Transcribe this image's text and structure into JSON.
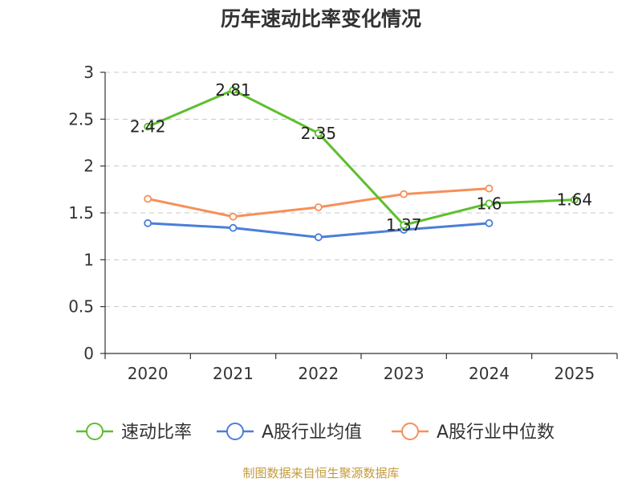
{
  "chart_data": {
    "type": "line",
    "title": "历年速动比率变化情况",
    "categories": [
      "2020",
      "2021",
      "2022",
      "2023",
      "2024",
      "2025"
    ],
    "ylim": [
      0,
      3
    ],
    "yticks": [
      "0",
      "0.5",
      "1",
      "1.5",
      "2",
      "2.5",
      "3"
    ],
    "grid": true,
    "legend_position": "bottom",
    "series": [
      {
        "name": "速动比率",
        "color": "#5dbf2e",
        "values": [
          2.42,
          2.81,
          2.35,
          1.37,
          1.6,
          1.64
        ],
        "labels": [
          "2.42",
          "2.81",
          "2.35",
          "1.37",
          "1.6",
          "1.64"
        ]
      },
      {
        "name": "A股行业均值",
        "color": "#4a7fd8",
        "values": [
          1.39,
          1.34,
          1.24,
          1.32,
          1.39,
          null
        ]
      },
      {
        "name": "A股行业中位数",
        "color": "#f5905a",
        "values": [
          1.65,
          1.46,
          1.56,
          1.7,
          1.76,
          null
        ]
      }
    ],
    "source": "制图数据来自恒生聚源数据库",
    "source_color": "#c49a3c"
  }
}
